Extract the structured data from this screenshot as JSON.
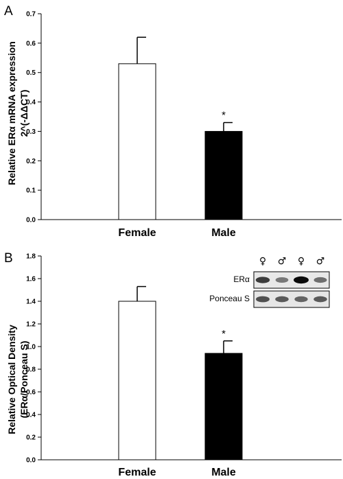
{
  "chart_data": [
    {
      "type": "bar",
      "panel": "A",
      "categories": [
        "Female",
        "Male"
      ],
      "values": [
        0.53,
        0.3
      ],
      "error": [
        0.09,
        0.03
      ],
      "bar_colors": [
        "#ffffff",
        "#000000"
      ],
      "significance": [
        "",
        "*"
      ],
      "ylabel": [
        "Relative ERα mRNA expression",
        "2^(-ΔΔCT)"
      ],
      "ylim": [
        0,
        0.7
      ],
      "yticks": [
        0.0,
        0.1,
        0.2,
        0.3,
        0.4,
        0.5,
        0.6,
        0.7
      ],
      "ytick_labels": [
        "0.0",
        "0.1",
        "0.2",
        "0.3",
        "0.4",
        "0.5",
        "0.6",
        "0.7"
      ],
      "grid": false
    },
    {
      "type": "bar",
      "panel": "B",
      "categories": [
        "Female",
        "Male"
      ],
      "values": [
        1.4,
        0.94
      ],
      "error": [
        0.13,
        0.11
      ],
      "bar_colors": [
        "#ffffff",
        "#000000"
      ],
      "significance": [
        "",
        "*"
      ],
      "ylabel": [
        "Relative Optical Density",
        "(ERα/Ponceau S)"
      ],
      "ylim": [
        0,
        1.8
      ],
      "yticks": [
        0.0,
        0.2,
        0.4,
        0.6,
        0.8,
        1.0,
        1.2,
        1.4,
        1.6,
        1.8
      ],
      "ytick_labels": [
        "0.0",
        "0.2",
        "0.4",
        "0.6",
        "0.8",
        "1.0",
        "1.2",
        "1.4",
        "1.6",
        "1.8"
      ],
      "grid": false,
      "inset_blot": {
        "lane_labels": [
          "♀",
          "♂",
          "♀",
          "♂"
        ],
        "rows": [
          {
            "label": "ERα",
            "band_intensity": [
              0.75,
              0.45,
              1.0,
              0.5
            ]
          },
          {
            "label": "Ponceau S",
            "band_intensity": [
              0.65,
              0.6,
              0.55,
              0.6
            ]
          }
        ]
      }
    }
  ]
}
